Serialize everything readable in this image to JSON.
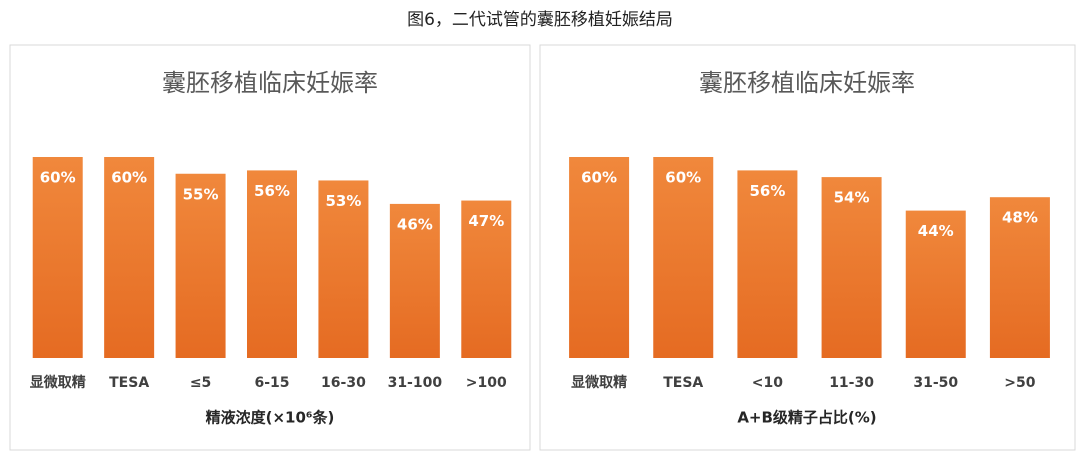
{
  "figure_title": "图6，二代试管的囊胚移植妊娠结局",
  "chart_data": [
    {
      "type": "bar",
      "title": "囊胚移植临床妊娠率",
      "x_label": "精液浓度(×10⁶条)",
      "categories": [
        "显微取精",
        "TESA",
        "≤5",
        "6-15",
        "16-30",
        "31-100",
        ">100"
      ],
      "values": [
        60,
        60,
        55,
        56,
        53,
        46,
        47
      ],
      "value_labels": [
        "60%",
        "60%",
        "55%",
        "56%",
        "53%",
        "46%",
        "47%"
      ],
      "color": "#ed7d31"
    },
    {
      "type": "bar",
      "title": "囊胚移植临床妊娠率",
      "x_label": "A+B级精子占比(%)",
      "categories": [
        "显微取精",
        "TESA",
        "<10",
        "11-30",
        "31-50",
        ">50"
      ],
      "values": [
        60,
        60,
        56,
        54,
        44,
        48
      ],
      "value_labels": [
        "60%",
        "60%",
        "56%",
        "54%",
        "44%",
        "48%"
      ],
      "color": "#ed7d31"
    }
  ]
}
